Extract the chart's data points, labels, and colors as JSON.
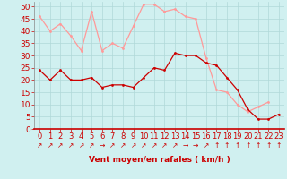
{
  "hours": [
    0,
    1,
    2,
    3,
    4,
    5,
    6,
    7,
    8,
    9,
    10,
    11,
    12,
    13,
    14,
    15,
    16,
    17,
    18,
    19,
    20,
    21,
    22,
    23
  ],
  "wind_avg": [
    24,
    20,
    24,
    20,
    20,
    21,
    17,
    18,
    18,
    17,
    21,
    25,
    24,
    31,
    30,
    30,
    27,
    26,
    21,
    16,
    8,
    4,
    4,
    6
  ],
  "wind_gust": [
    46,
    40,
    43,
    38,
    32,
    48,
    32,
    35,
    33,
    42,
    51,
    51,
    48,
    49,
    46,
    45,
    29,
    16,
    15,
    10,
    7,
    9,
    11
  ],
  "wind_gust_hours": [
    0,
    1,
    2,
    3,
    4,
    5,
    6,
    7,
    8,
    9,
    10,
    11,
    12,
    13,
    14,
    15,
    16,
    17,
    18,
    19,
    20,
    21,
    22
  ],
  "arrows": [
    "↗",
    "↗",
    "↗",
    "↗",
    "↗",
    "↗",
    "→",
    "↗",
    "↗",
    "↗",
    "↗",
    "↗",
    "↗",
    "↗",
    "→",
    "→",
    "↗",
    "↑",
    "↑",
    "↑",
    "↑",
    "↑",
    "↑",
    "↑"
  ],
  "avg_color": "#cc0000",
  "gust_color": "#ff9999",
  "background_color": "#d0f0f0",
  "grid_color": "#b0d8d8",
  "xlabel": "Vent moyen/en rafales ( km/h )",
  "xlabel_color": "#cc0000",
  "tick_color": "#cc0000",
  "spine_color": "#888888",
  "ylim": [
    0,
    52
  ],
  "yticks": [
    0,
    5,
    10,
    15,
    20,
    25,
    30,
    35,
    40,
    45,
    50
  ],
  "axis_fontsize": 6.5
}
